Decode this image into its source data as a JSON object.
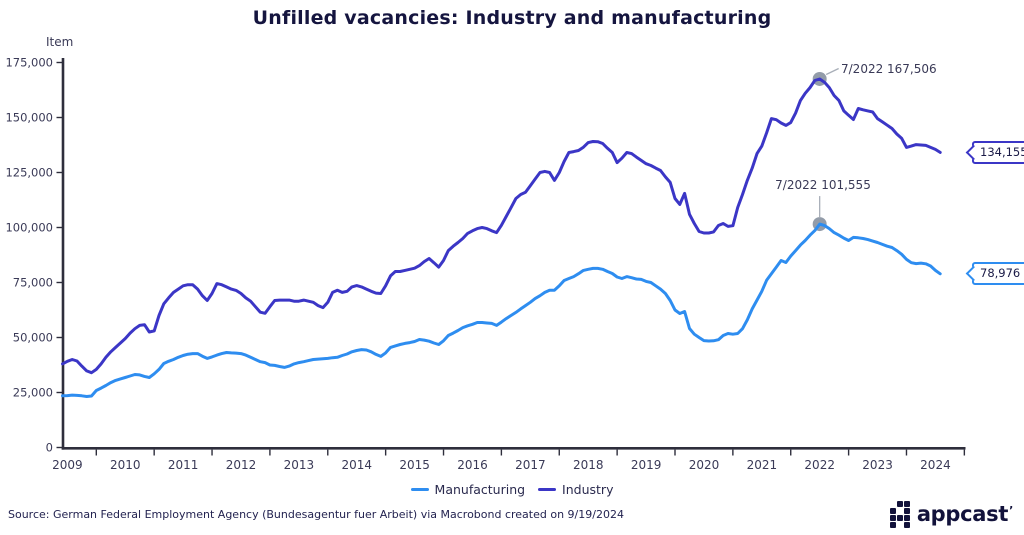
{
  "title": "Unfilled vacancies: Industry and manufacturing",
  "y_axis": {
    "label": "Item",
    "tick_labels": [
      "0",
      "25,000",
      "50,000",
      "75,000",
      "100,000",
      "125,000",
      "150,000",
      "175,000"
    ]
  },
  "x_axis": {
    "year_labels": [
      "2009",
      "2010",
      "2011",
      "2012",
      "2013",
      "2014",
      "2015",
      "2016",
      "2017",
      "2018",
      "2019",
      "2020",
      "2021",
      "2022",
      "2023",
      "2024"
    ]
  },
  "legend": {
    "items": [
      {
        "label": "Manufacturing",
        "color": "#2E8DF0"
      },
      {
        "label": "Industry",
        "color": "#3B36C6"
      }
    ]
  },
  "annotations": {
    "industry_peak": {
      "text": "7/2022 167,506"
    },
    "manufacturing_peak": {
      "text": "7/2022 101,555"
    }
  },
  "end_labels": {
    "industry": "134,155",
    "manufacturing": "78,976"
  },
  "source": "Source: German Federal Employment Agency (Bundesagentur fuer Arbeit) via Macrobond created on 9/19/2024",
  "logo": {
    "text": "appcast",
    "mark": "’",
    "icon_pattern": [
      [
        0,
        1,
        1
      ],
      [
        1,
        0,
        1
      ],
      [
        1,
        1,
        1
      ],
      [
        1,
        0,
        1
      ]
    ]
  },
  "colors": {
    "industry": "#3B36C6",
    "manufacturing": "#2E8DF0",
    "axis": "#2E2E3C",
    "tick_text": "#3A3A57",
    "marker_dot": "#939CA9",
    "leader_line": "#A8AEB8"
  },
  "chart_data": {
    "type": "line",
    "title": "Unfilled vacancies: Industry and manufacturing",
    "ylabel": "Item",
    "ylim": [
      0,
      175000
    ],
    "x_start": "2009-06",
    "x_end": "2024-08",
    "frequency": "monthly",
    "grid": false,
    "legend_position": "bottom-center",
    "series": [
      {
        "name": "Manufacturing",
        "color": "#2E8DF0",
        "values": [
          23500,
          23600,
          23800,
          23700,
          23500,
          23200,
          23400,
          25900,
          27000,
          28200,
          29500,
          30500,
          31200,
          31800,
          32500,
          33200,
          33000,
          32300,
          31800,
          33500,
          35500,
          38200,
          39200,
          40000,
          41000,
          41800,
          42400,
          42700,
          42700,
          41500,
          40500,
          41200,
          42000,
          42700,
          43200,
          43000,
          42900,
          42700,
          42000,
          41000,
          40000,
          39000,
          38600,
          37500,
          37300,
          36800,
          36400,
          37000,
          38000,
          38600,
          39000,
          39500,
          40000,
          40200,
          40300,
          40500,
          40800,
          41000,
          41800,
          42500,
          43500,
          44100,
          44500,
          44300,
          43500,
          42300,
          41400,
          43000,
          45500,
          46200,
          46800,
          47300,
          47700,
          48200,
          49100,
          48800,
          48300,
          47500,
          46800,
          48500,
          50900,
          52000,
          53200,
          54500,
          55300,
          56000,
          56800,
          56800,
          56600,
          56400,
          55500,
          57000,
          58600,
          60000,
          61400,
          63000,
          64500,
          66000,
          67700,
          69000,
          70500,
          71500,
          71500,
          73500,
          75900,
          76800,
          77700,
          79000,
          80500,
          81000,
          81400,
          81400,
          81000,
          80000,
          79100,
          77500,
          76800,
          77700,
          77200,
          76600,
          76400,
          75500,
          75000,
          73500,
          72000,
          70000,
          66800,
          62500,
          60900,
          61800,
          54100,
          51500,
          50000,
          48600,
          48400,
          48500,
          49000,
          50900,
          51800,
          51500,
          51800,
          54000,
          58000,
          63000,
          67000,
          71000,
          76000,
          79000,
          82000,
          85000,
          84100,
          87000,
          89500,
          92000,
          94100,
          96500,
          98600,
          101555,
          100900,
          99500,
          97700,
          96500,
          95200,
          94100,
          95500,
          95300,
          95000,
          94500,
          93800,
          93200,
          92300,
          91500,
          90900,
          89500,
          87800,
          85500,
          84000,
          83600,
          83800,
          83500,
          82500,
          80500,
          78976
        ]
      },
      {
        "name": "Industry",
        "color": "#3B36C6",
        "values": [
          38000,
          39200,
          40000,
          39300,
          37000,
          34800,
          34000,
          35500,
          38000,
          41000,
          43500,
          45500,
          47500,
          49500,
          52000,
          54000,
          55500,
          55800,
          52500,
          53000,
          60000,
          65300,
          68000,
          70500,
          72000,
          73500,
          74000,
          74000,
          72000,
          69000,
          66800,
          70000,
          74500,
          74000,
          73000,
          72000,
          71400,
          70000,
          68000,
          66500,
          64000,
          61500,
          61000,
          64000,
          66800,
          67000,
          67000,
          67000,
          66500,
          66500,
          67000,
          66500,
          66000,
          64500,
          63600,
          66000,
          70500,
          71500,
          70500,
          71000,
          73000,
          73600,
          73000,
          72000,
          71000,
          70200,
          70000,
          73500,
          78000,
          80000,
          80000,
          80500,
          81000,
          81500,
          82700,
          84500,
          85900,
          84000,
          82000,
          85000,
          89500,
          91500,
          93200,
          95000,
          97300,
          98500,
          99500,
          100000,
          99500,
          98500,
          97700,
          101000,
          105000,
          109000,
          113200,
          115000,
          116000,
          119000,
          122000,
          125000,
          125500,
          125000,
          121400,
          125000,
          130000,
          134100,
          134500,
          135000,
          136500,
          138600,
          139100,
          139000,
          138200,
          136000,
          134100,
          129500,
          131500,
          134100,
          133600,
          132000,
          130500,
          129000,
          128200,
          127000,
          125900,
          123000,
          120500,
          113200,
          110500,
          115500,
          106000,
          101800,
          98200,
          97500,
          97500,
          98000,
          100900,
          101800,
          100500,
          100800,
          109100,
          115000,
          121400,
          127000,
          133600,
          137000,
          143000,
          149500,
          149000,
          147500,
          146400,
          147700,
          152000,
          157700,
          161000,
          163600,
          166800,
          167506,
          166000,
          163600,
          160000,
          157700,
          153000,
          151000,
          149100,
          154100,
          153500,
          153000,
          152500,
          149500,
          148000,
          146500,
          145000,
          142500,
          140500,
          136400,
          137000,
          137700,
          137500,
          137300,
          136400,
          135500,
          134155
        ]
      }
    ],
    "callouts": [
      {
        "series": "Industry",
        "date": "7/2022",
        "value": 167506
      },
      {
        "series": "Manufacturing",
        "date": "7/2022",
        "value": 101555
      }
    ],
    "last_values": [
      {
        "series": "Industry",
        "value": 134155
      },
      {
        "series": "Manufacturing",
        "value": 78976
      }
    ]
  }
}
